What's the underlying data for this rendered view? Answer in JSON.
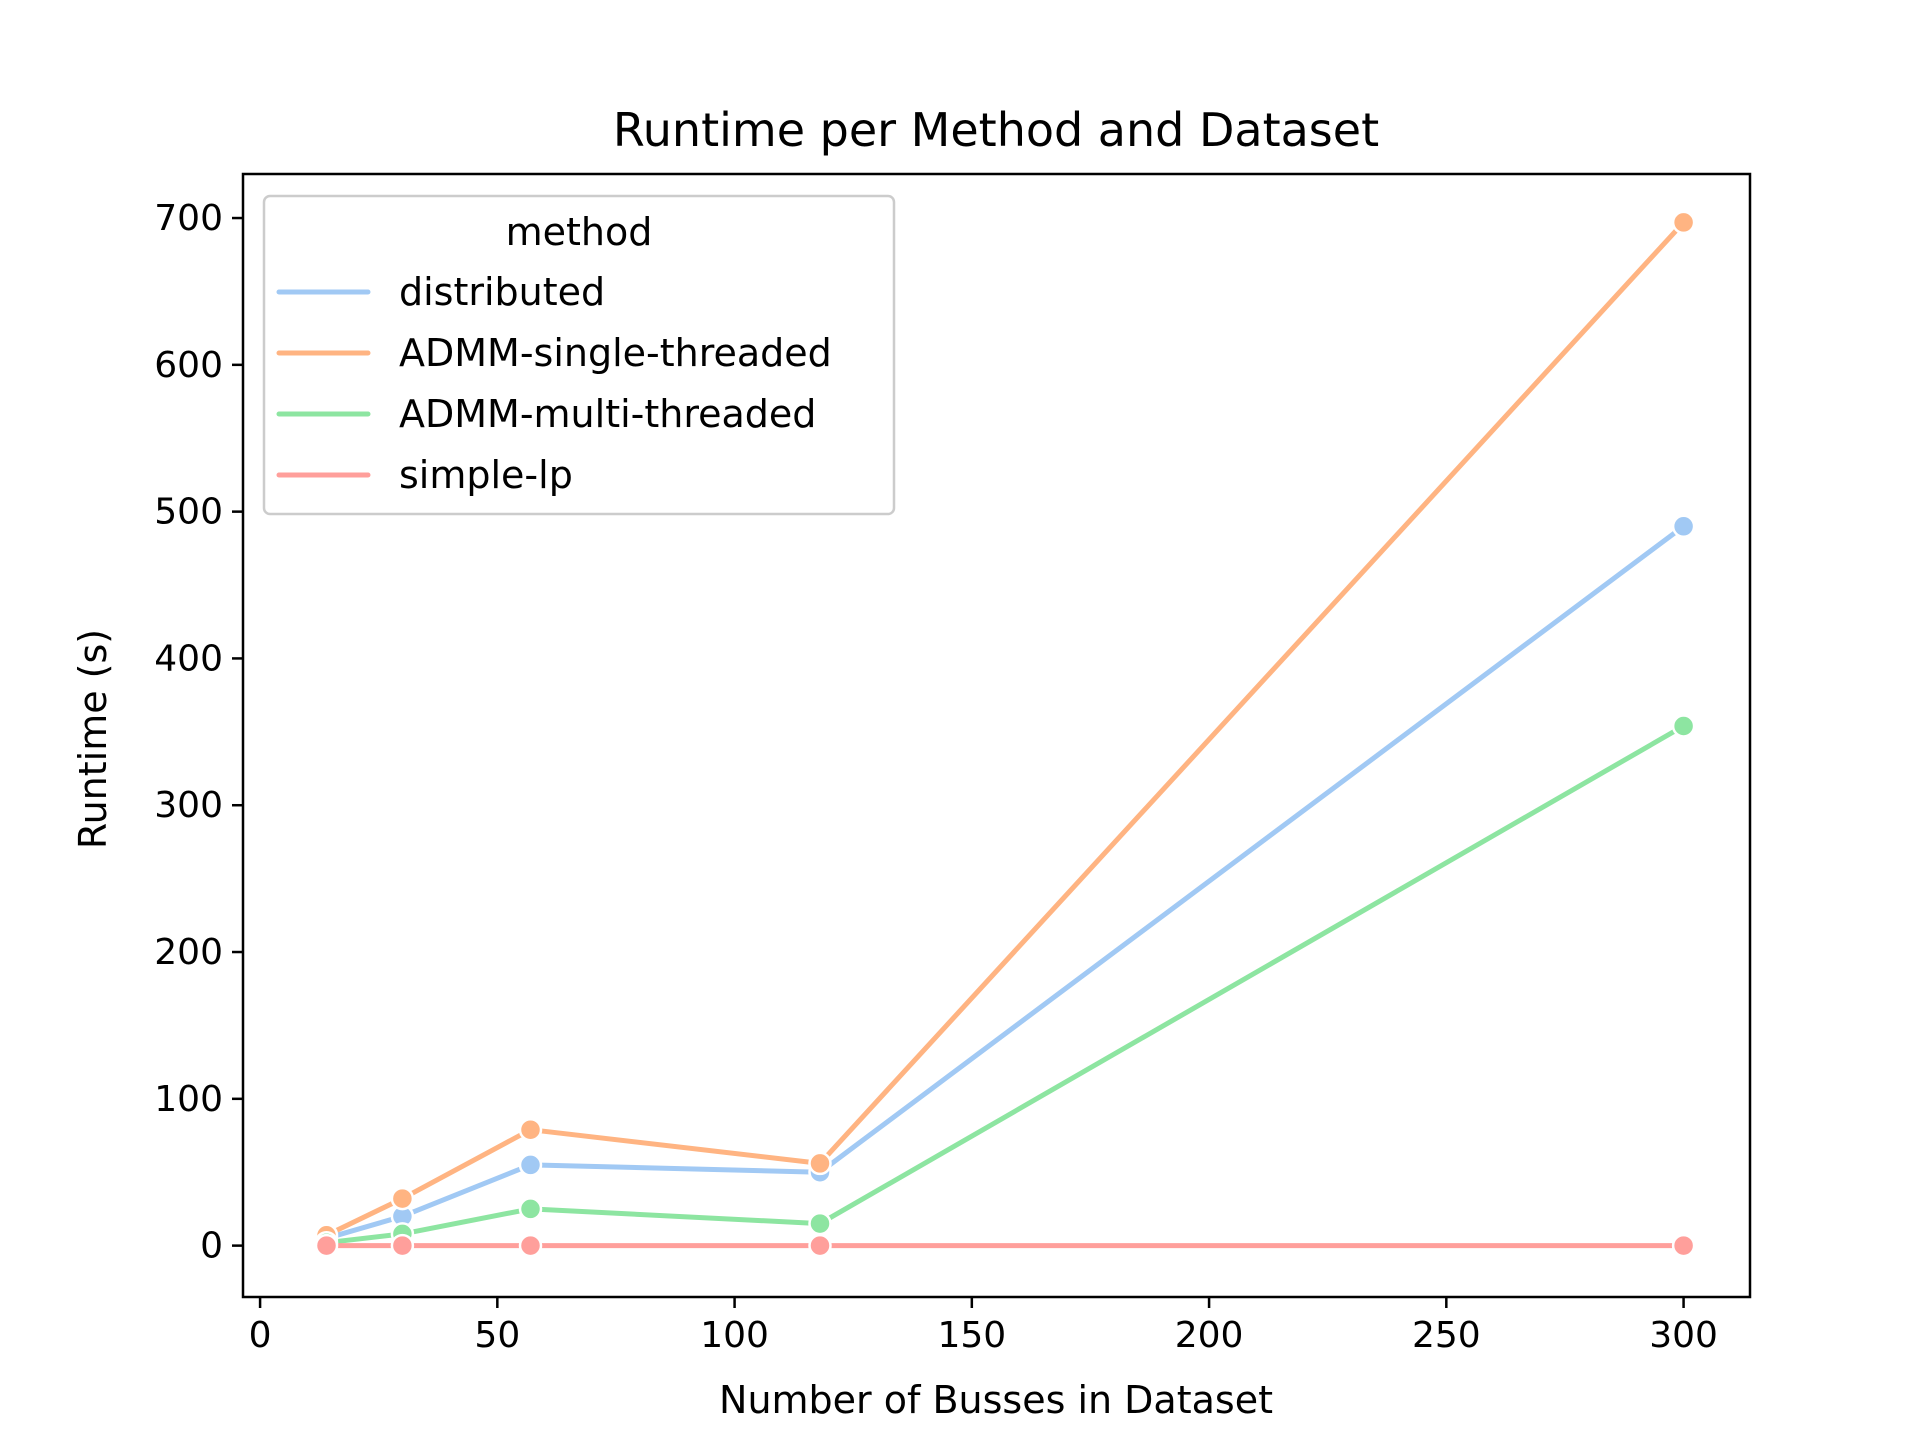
{
  "chart_data": {
    "type": "line",
    "title": "Runtime per Method and Dataset",
    "xlabel": "Number of Busses in Dataset",
    "ylabel": "Runtime (s)",
    "xlim": [
      -3.6,
      314
    ],
    "ylim": [
      -35,
      730
    ],
    "xticks": [
      0,
      50,
      100,
      150,
      200,
      250,
      300
    ],
    "yticks": [
      0,
      100,
      200,
      300,
      400,
      500,
      600,
      700
    ],
    "grid": false,
    "legend": {
      "title": "method",
      "placement": "upper left"
    },
    "x": [
      14,
      30,
      57,
      118,
      300
    ],
    "series": [
      {
        "name": "distributed",
        "color": "#a1c9f4",
        "values": [
          5,
          20,
          55,
          50,
          490
        ]
      },
      {
        "name": "ADMM-single-threaded",
        "color": "#ffb482",
        "values": [
          7,
          32,
          79,
          56,
          697
        ]
      },
      {
        "name": "ADMM-multi-threaded",
        "color": "#8de5a1",
        "values": [
          2,
          8,
          25,
          15,
          354
        ]
      },
      {
        "name": "simple-lp",
        "color": "#ff9f9b",
        "values": [
          0,
          0,
          0,
          0,
          0
        ]
      }
    ]
  }
}
